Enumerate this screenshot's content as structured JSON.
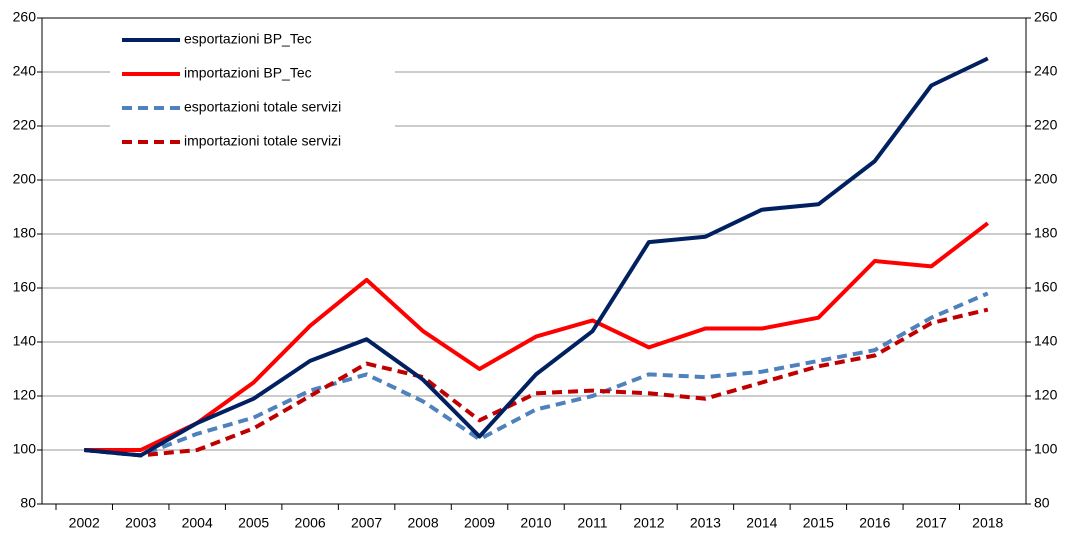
{
  "chart_data": {
    "type": "line",
    "categories": [
      "2002",
      "2003",
      "2004",
      "2005",
      "2006",
      "2007",
      "2008",
      "2009",
      "2010",
      "2011",
      "2012",
      "2013",
      "2014",
      "2015",
      "2016",
      "2017",
      "2018"
    ],
    "series": [
      {
        "name": "esportazioni BP_Tec",
        "color": "#002060",
        "dashed": false,
        "values": [
          100,
          98,
          110,
          119,
          133,
          141,
          126,
          105,
          128,
          144,
          177,
          179,
          189,
          191,
          207,
          235,
          245
        ]
      },
      {
        "name": "importazioni BP_Tec",
        "color": "#ff0000",
        "dashed": false,
        "values": [
          100,
          100,
          110,
          125,
          146,
          163,
          144,
          130,
          142,
          148,
          138,
          145,
          145,
          149,
          170,
          168,
          184
        ]
      },
      {
        "name": "esportazioni totale servizi",
        "color": "#4f81bd",
        "dashed": true,
        "values": [
          100,
          98,
          106,
          112,
          122,
          128,
          118,
          104,
          115,
          120,
          128,
          127,
          129,
          133,
          137,
          149,
          158
        ]
      },
      {
        "name": "importazioni totale servizi",
        "color": "#c00000",
        "dashed": true,
        "values": [
          100,
          98,
          100,
          108,
          120,
          132,
          127,
          111,
          121,
          122,
          121,
          119,
          125,
          131,
          135,
          147,
          152
        ]
      }
    ],
    "ylim": [
      80,
      260
    ],
    "yticks": [
      80,
      100,
      120,
      140,
      160,
      180,
      200,
      220,
      240,
      260
    ],
    "y2lim": [
      80,
      260
    ],
    "y2ticks": [
      80,
      100,
      120,
      140,
      160,
      180,
      200,
      220,
      240,
      260
    ],
    "grid": true,
    "legend": "upper left"
  }
}
